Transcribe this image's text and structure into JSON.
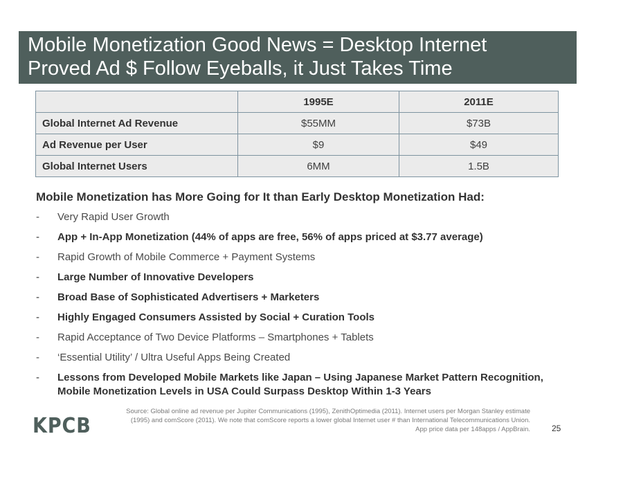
{
  "title": {
    "line1": "Mobile Monetization Good News = Desktop Internet",
    "line2": "Proved Ad $ Follow Eyeballs, it Just Takes Time"
  },
  "table": {
    "headers": [
      "",
      "1995E",
      "2011E"
    ],
    "rows": [
      {
        "label": "Global Internet Ad Revenue",
        "values": [
          "$55MM",
          "$73B"
        ]
      },
      {
        "label": "Ad Revenue per User",
        "values": [
          "$9",
          "$49"
        ]
      },
      {
        "label": "Global Internet Users",
        "values": [
          "6MM",
          "1.5B"
        ]
      }
    ]
  },
  "subheading": "Mobile Monetization has More Going for It than Early Desktop Monetization Had:",
  "bullet_marker": "-",
  "bullets": [
    {
      "text": "Very Rapid User Growth",
      "bold": false
    },
    {
      "text": "App + In-App Monetization (44% of apps are free, 56% of apps priced at $3.77 average)",
      "bold": true
    },
    {
      "text": "Rapid Growth of Mobile Commerce + Payment Systems",
      "bold": false
    },
    {
      "text": "Large Number of Innovative Developers",
      "bold": true
    },
    {
      "text": "Broad Base of Sophisticated Advertisers + Marketers",
      "bold": true
    },
    {
      "text": "Highly Engaged Consumers Assisted by Social + Curation Tools",
      "bold": true
    },
    {
      "text": "Rapid Acceptance of Two Device Platforms – Smartphones + Tablets",
      "bold": false
    },
    {
      "text": "‘Essential Utility’ / Ultra Useful Apps Being Created",
      "bold": false
    },
    {
      "text": "Lessons from Developed Mobile Markets like Japan – Using Japanese Market Pattern Recognition, Mobile Monetization Levels in USA Could Surpass Desktop Within 1-3 Years",
      "bold": true
    }
  ],
  "logo": "KPCB",
  "source": {
    "line1": "Source: Global online ad revenue per Jupiter Communications (1995), ZenithOptimedia (2011). Internet users per Morgan Stanley estimate",
    "line2": "(1995) and comScore (2011). We note that comScore reports a lower global Internet user # than International Telecommunications Union.",
    "line3": "App price data per 148apps / AppBrain."
  },
  "page_number": "25",
  "colors": {
    "title_bar": "#4f5f5c",
    "table_fill": "#ebebeb",
    "table_border": "#7e93a0",
    "logo": "#4f5f5c"
  }
}
